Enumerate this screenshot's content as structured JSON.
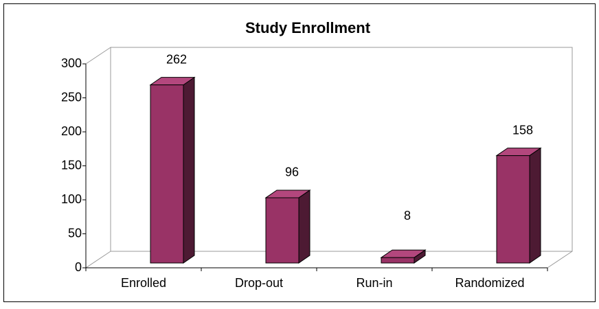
{
  "chart_data": {
    "type": "bar",
    "title": "Study Enrollment",
    "categories": [
      "Enrolled",
      "Drop-out",
      "Run-in",
      "Randomized"
    ],
    "values": [
      262,
      96,
      8,
      158
    ],
    "color": "#993366",
    "ylim": [
      0,
      300
    ],
    "yticks": [
      0,
      50,
      100,
      150,
      200,
      250,
      300
    ]
  }
}
